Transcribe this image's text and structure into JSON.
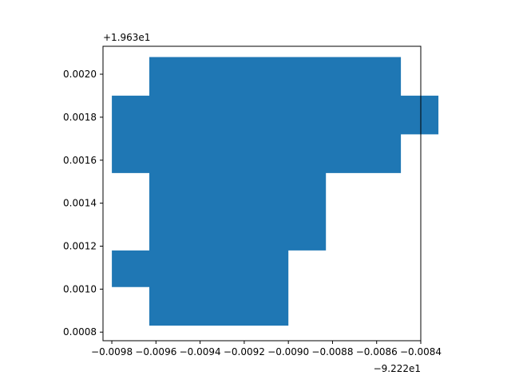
{
  "chart_data": {
    "type": "area",
    "title": "",
    "xlabel": "",
    "ylabel": "",
    "x_offset_label": "−9.222e1",
    "y_offset_label": "+1.963e1",
    "xlim": [
      -0.00984,
      -0.0084
    ],
    "ylim": [
      0.00076,
      0.00213
    ],
    "x_ticks": [
      {
        "value": -0.0098,
        "label": "−0.0098"
      },
      {
        "value": -0.0096,
        "label": "−0.0096"
      },
      {
        "value": -0.0094,
        "label": "−0.0094"
      },
      {
        "value": -0.0092,
        "label": "−0.0092"
      },
      {
        "value": -0.009,
        "label": "−0.0090"
      },
      {
        "value": -0.0088,
        "label": "−0.0088"
      },
      {
        "value": -0.0086,
        "label": "−0.0086"
      },
      {
        "value": -0.0084,
        "label": "−0.0084"
      }
    ],
    "y_ticks": [
      {
        "value": 0.0008,
        "label": "0.0008"
      },
      {
        "value": 0.001,
        "label": "0.0010"
      },
      {
        "value": 0.0012,
        "label": "0.0012"
      },
      {
        "value": 0.0014,
        "label": "0.0014"
      },
      {
        "value": 0.0016,
        "label": "0.0016"
      },
      {
        "value": 0.0018,
        "label": "0.0018"
      },
      {
        "value": 0.002,
        "label": "0.0020"
      }
    ],
    "grid": false,
    "fill_color": "#1f77b4",
    "polygon": [
      [
        -0.00963,
        0.00208
      ],
      [
        -0.00849,
        0.00208
      ],
      [
        -0.00849,
        0.0019
      ],
      [
        -0.00832,
        0.0019
      ],
      [
        -0.00832,
        0.00172
      ],
      [
        -0.00849,
        0.00172
      ],
      [
        -0.00849,
        0.00154
      ],
      [
        -0.00883,
        0.00154
      ],
      [
        -0.00883,
        0.00118
      ],
      [
        -0.009,
        0.00118
      ],
      [
        -0.009,
        0.00083
      ],
      [
        -0.00963,
        0.00083
      ],
      [
        -0.00963,
        0.00101
      ],
      [
        -0.0098,
        0.00101
      ],
      [
        -0.0098,
        0.00118
      ],
      [
        -0.00963,
        0.00118
      ],
      [
        -0.00963,
        0.00154
      ],
      [
        -0.0098,
        0.00154
      ],
      [
        -0.0098,
        0.0019
      ],
      [
        -0.00963,
        0.0019
      ]
    ]
  }
}
